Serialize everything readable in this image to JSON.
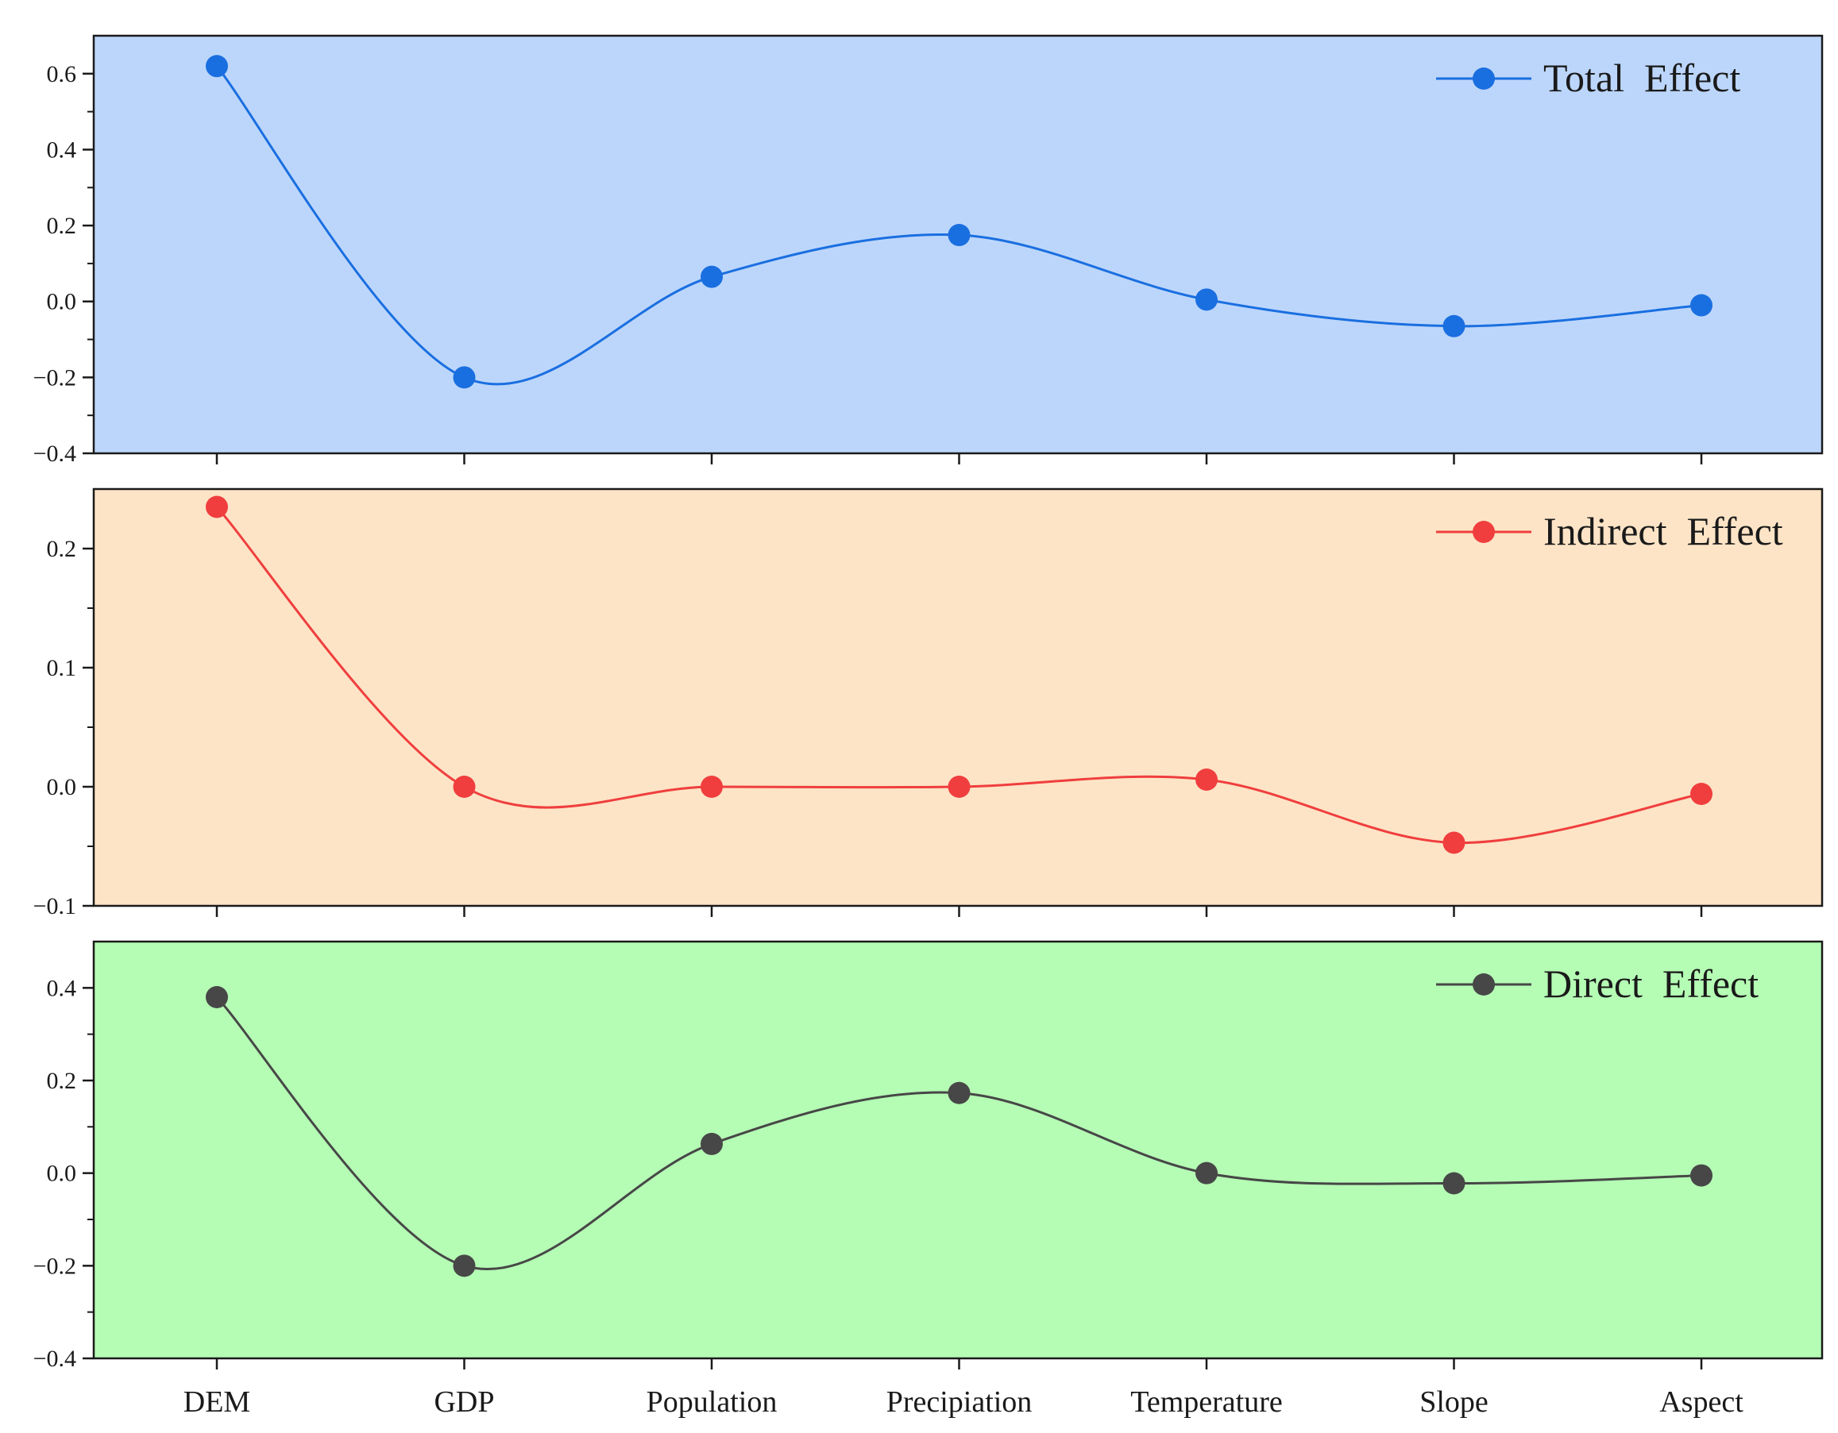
{
  "chart_data": [
    {
      "type": "line",
      "categories": [
        "DEM",
        "GDP",
        "Population",
        "Precipiation",
        "Temperature",
        "Slope",
        "Aspect"
      ],
      "series": [
        {
          "name": "Total  Effect",
          "values": [
            0.62,
            -0.2,
            0.065,
            0.175,
            0.005,
            -0.065,
            -0.01
          ]
        }
      ],
      "ylim": [
        -0.4,
        0.7
      ],
      "yticks": [
        "−0.4",
        "−0.2",
        "0.0",
        "0.2",
        "0.4",
        "0.6"
      ],
      "ytick_values": [
        -0.4,
        -0.2,
        0.0,
        0.2,
        0.4,
        0.6
      ],
      "line_color": "#1a6fe0",
      "background": "#bcd6fb",
      "legend": "top-right",
      "grid": false,
      "smooth": true
    },
    {
      "type": "line",
      "categories": [
        "DEM",
        "GDP",
        "Population",
        "Precipiation",
        "Temperature",
        "Slope",
        "Aspect"
      ],
      "series": [
        {
          "name": "Indirect  Effect",
          "values": [
            0.235,
            0.0,
            0.0,
            0.0,
            0.006,
            -0.047,
            -0.006
          ]
        }
      ],
      "ylim": [
        -0.1,
        0.25
      ],
      "yticks": [
        "−0.1",
        "0.0",
        "0.1",
        "0.2"
      ],
      "ytick_values": [
        -0.1,
        0.0,
        0.1,
        0.2
      ],
      "line_color": "#f03e3e",
      "background": "#fde4c6",
      "legend": "top-right",
      "grid": false,
      "smooth": true
    },
    {
      "type": "line",
      "categories": [
        "DEM",
        "GDP",
        "Population",
        "Precipiation",
        "Temperature",
        "Slope",
        "Aspect"
      ],
      "series": [
        {
          "name": "Direct  Effect",
          "values": [
            0.38,
            -0.2,
            0.063,
            0.173,
            0.0,
            -0.022,
            -0.005
          ]
        }
      ],
      "ylim": [
        -0.4,
        0.5
      ],
      "yticks": [
        "−0.4",
        "−0.2",
        "0.0",
        "0.2",
        "0.4"
      ],
      "ytick_values": [
        -0.4,
        -0.2,
        0.0,
        0.2,
        0.4
      ],
      "line_color": "#474747",
      "background": "#b5fcb5",
      "legend": "top-right",
      "grid": false,
      "smooth": true
    }
  ]
}
